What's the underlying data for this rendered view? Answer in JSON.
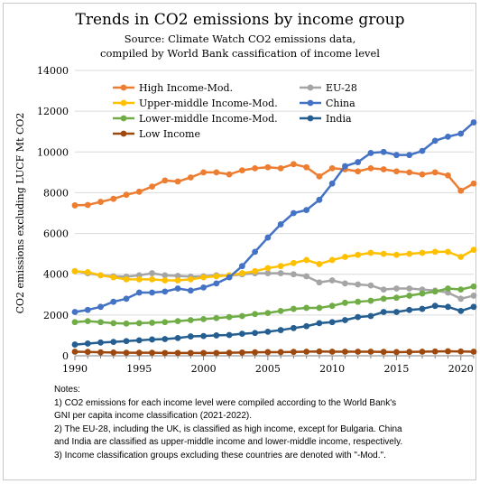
{
  "chart_data": {
    "type": "line",
    "title": "Trends in CO2 emissions by income group",
    "subtitle_lines": [
      "Source: Climate Watch CO2 emissions data,",
      "compiled by World Bank cassification of income level"
    ],
    "xlabel": "",
    "ylabel": "CO2 emissions excluding LUCF  Mt CO2",
    "xlim": [
      1990,
      2021
    ],
    "ylim": [
      0,
      14000
    ],
    "x_ticks": [
      1990,
      1995,
      2000,
      2005,
      2010,
      2015,
      2020
    ],
    "y_ticks": [
      0,
      2000,
      4000,
      6000,
      8000,
      10000,
      12000,
      14000
    ],
    "y_tick_labels": [
      "0",
      "2000",
      "4000",
      "6000",
      "8000",
      "10000",
      "12000",
      "14000"
    ],
    "grid": "horizontal",
    "legend_placement": "top, inside plot",
    "x": [
      1990,
      1991,
      1992,
      1993,
      1994,
      1995,
      1996,
      1997,
      1998,
      1999,
      2000,
      2001,
      2002,
      2003,
      2004,
      2005,
      2006,
      2007,
      2008,
      2009,
      2010,
      2011,
      2012,
      2013,
      2014,
      2015,
      2016,
      2017,
      2018,
      2019,
      2020,
      2021
    ],
    "series": [
      {
        "name": "High Income-Mod.",
        "color": "#ED7D31",
        "values": [
          7380,
          7400,
          7550,
          7700,
          7900,
          8050,
          8300,
          8600,
          8550,
          8750,
          9000,
          9000,
          8900,
          9100,
          9200,
          9250,
          9200,
          9400,
          9250,
          8800,
          9200,
          9150,
          9050,
          9200,
          9150,
          9050,
          9000,
          8900,
          9000,
          8850,
          8100,
          8450
        ]
      },
      {
        "name": "EU-28",
        "color": "#A5A5A5",
        "values": [
          4150,
          4050,
          3950,
          3900,
          3880,
          3950,
          4050,
          3950,
          3920,
          3880,
          3900,
          3950,
          3920,
          4000,
          4050,
          4050,
          4050,
          4000,
          3900,
          3600,
          3700,
          3550,
          3500,
          3450,
          3250,
          3300,
          3300,
          3250,
          3200,
          3100,
          2800,
          2950
        ]
      },
      {
        "name": "Upper-middle Income-Mod.",
        "color": "#FFC000",
        "values": [
          4150,
          4100,
          3950,
          3850,
          3750,
          3750,
          3750,
          3700,
          3700,
          3750,
          3850,
          3900,
          3950,
          4050,
          4150,
          4300,
          4400,
          4550,
          4700,
          4500,
          4700,
          4850,
          4950,
          5050,
          5000,
          4950,
          5000,
          5050,
          5100,
          5100,
          4850,
          5200
        ]
      },
      {
        "name": "China",
        "color": "#4472C4",
        "values": [
          2150,
          2250,
          2400,
          2650,
          2800,
          3100,
          3100,
          3150,
          3300,
          3200,
          3350,
          3550,
          3850,
          4400,
          5100,
          5800,
          6450,
          7000,
          7150,
          7650,
          8450,
          9300,
          9500,
          9950,
          10000,
          9850,
          9850,
          10050,
          10550,
          10750,
          10900,
          11450
        ]
      },
      {
        "name": "Lower-middle Income-Mod.",
        "color": "#70AD47",
        "values": [
          1650,
          1700,
          1650,
          1600,
          1580,
          1600,
          1620,
          1650,
          1700,
          1750,
          1800,
          1850,
          1900,
          1950,
          2050,
          2100,
          2200,
          2300,
          2350,
          2350,
          2450,
          2600,
          2650,
          2700,
          2800,
          2850,
          2950,
          3050,
          3150,
          3300,
          3250,
          3400
        ]
      },
      {
        "name": "India",
        "color": "#255E91",
        "values": [
          550,
          600,
          650,
          680,
          720,
          760,
          800,
          820,
          870,
          950,
          970,
          1000,
          1020,
          1080,
          1120,
          1180,
          1260,
          1360,
          1450,
          1600,
          1650,
          1750,
          1900,
          1950,
          2150,
          2150,
          2250,
          2300,
          2450,
          2400,
          2200,
          2400
        ]
      },
      {
        "name": "Low Income",
        "color": "#9E480E",
        "values": [
          200,
          190,
          170,
          160,
          150,
          150,
          150,
          140,
          140,
          140,
          140,
          140,
          150,
          160,
          170,
          180,
          180,
          190,
          200,
          210,
          200,
          200,
          200,
          200,
          190,
          180,
          190,
          200,
          210,
          220,
          210,
          200
        ]
      }
    ]
  },
  "notes": {
    "heading": "Notes:",
    "lines": [
      "1) CO2 emissions for each income level were compiled according to  the World Bank's",
      "GNI per capita income classification (2021-2022).",
      "2) The EU-28, including the UK, is classified as high income, except for Bulgaria. China",
      "and India are classified as upper-middle income and lower-middle income, respectively.",
      "3) Income classification groups excluding these countries are denoted with \"-Mod.\"."
    ]
  }
}
